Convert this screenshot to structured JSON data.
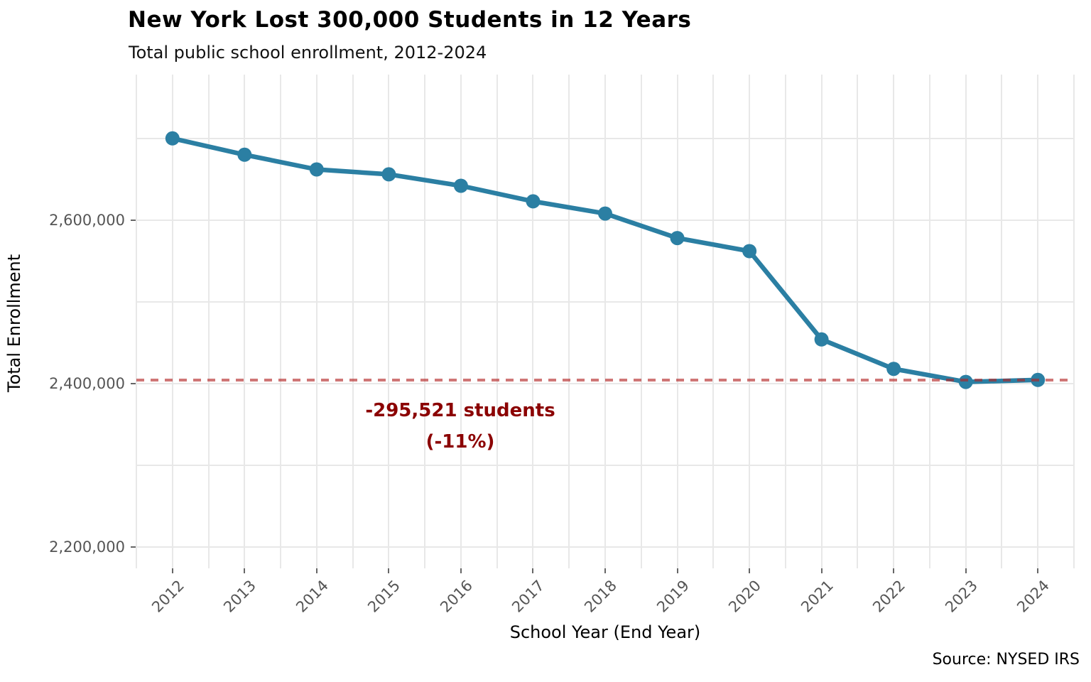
{
  "chart_data": {
    "type": "line",
    "title": "New York Lost 300,000 Students in 12 Years",
    "subtitle": "Total public school enrollment, 2012-2024",
    "x": [
      2012,
      2013,
      2014,
      2015,
      2016,
      2017,
      2018,
      2019,
      2020,
      2021,
      2022,
      2023,
      2024
    ],
    "series": [
      {
        "name": "Total public school enrollment",
        "values": [
          2700000,
          2680000,
          2662000,
          2656000,
          2642000,
          2623000,
          2608000,
          2578000,
          2562000,
          2454000,
          2418000,
          2402000,
          2404479
        ]
      }
    ],
    "xlabel": "School Year (End Year)",
    "ylabel": "Total Enrollment",
    "xlim": [
      2011.5,
      2024.5
    ],
    "ylim": [
      2174000,
      2778000
    ],
    "xticks": [
      2012,
      2013,
      2014,
      2015,
      2016,
      2017,
      2018,
      2019,
      2020,
      2021,
      2022,
      2023,
      2024
    ],
    "xtick_labels": [
      "2012",
      "2013",
      "2014",
      "2015",
      "2016",
      "2017",
      "2018",
      "2019",
      "2020",
      "2021",
      "2022",
      "2023",
      "2024"
    ],
    "yticks": [
      2200000,
      2400000,
      2600000
    ],
    "ytick_labels": [
      "2,200,000",
      "2,400,000",
      "2,600,000"
    ],
    "grid": "both",
    "xgrid_step": 0.5,
    "ygrid_step": 100000,
    "legend": "none",
    "line_color": "#2b7fa3",
    "marker": "circle",
    "reference_line": {
      "value": 2404479,
      "style": "dashed",
      "color": "#b22222"
    },
    "annotations": {
      "loss": {
        "line1": "-295,521 students",
        "line2": "(-11%)",
        "color": "#8b0000"
      }
    }
  },
  "footer": {
    "source": "Source: NYSED IRS"
  }
}
